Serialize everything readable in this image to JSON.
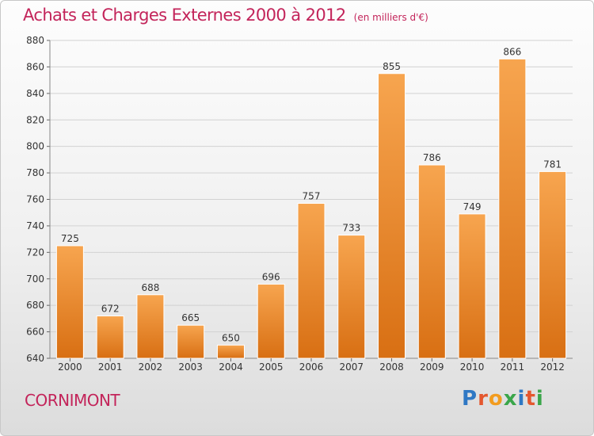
{
  "header": {
    "title": "Achats et Charges Externes 2000 à 2012",
    "subtitle": "(en milliers d'€)"
  },
  "footer": {
    "commune": "CORNIMONT",
    "logo_text": "Proxiti"
  },
  "colors": {
    "title": "#c3245a",
    "bar_light": "#f7a54f",
    "bar_dark": "#d86f13",
    "grid": "#d2d2d2",
    "axis_text": "#333333"
  },
  "chart_data": {
    "type": "bar",
    "title": "Achats et Charges Externes 2000 à 2012",
    "subtitle": "(en milliers d'€)",
    "categories": [
      "2000",
      "2001",
      "2002",
      "2003",
      "2004",
      "2005",
      "2006",
      "2007",
      "2008",
      "2009",
      "2010",
      "2011",
      "2012"
    ],
    "values": [
      725,
      672,
      688,
      665,
      650,
      696,
      757,
      733,
      855,
      786,
      749,
      866,
      781
    ],
    "ylim": [
      640,
      880
    ],
    "yticks": [
      640,
      660,
      680,
      700,
      720,
      740,
      760,
      780,
      800,
      820,
      840,
      860,
      880
    ],
    "grid": true,
    "xlabel": "",
    "ylabel": ""
  }
}
